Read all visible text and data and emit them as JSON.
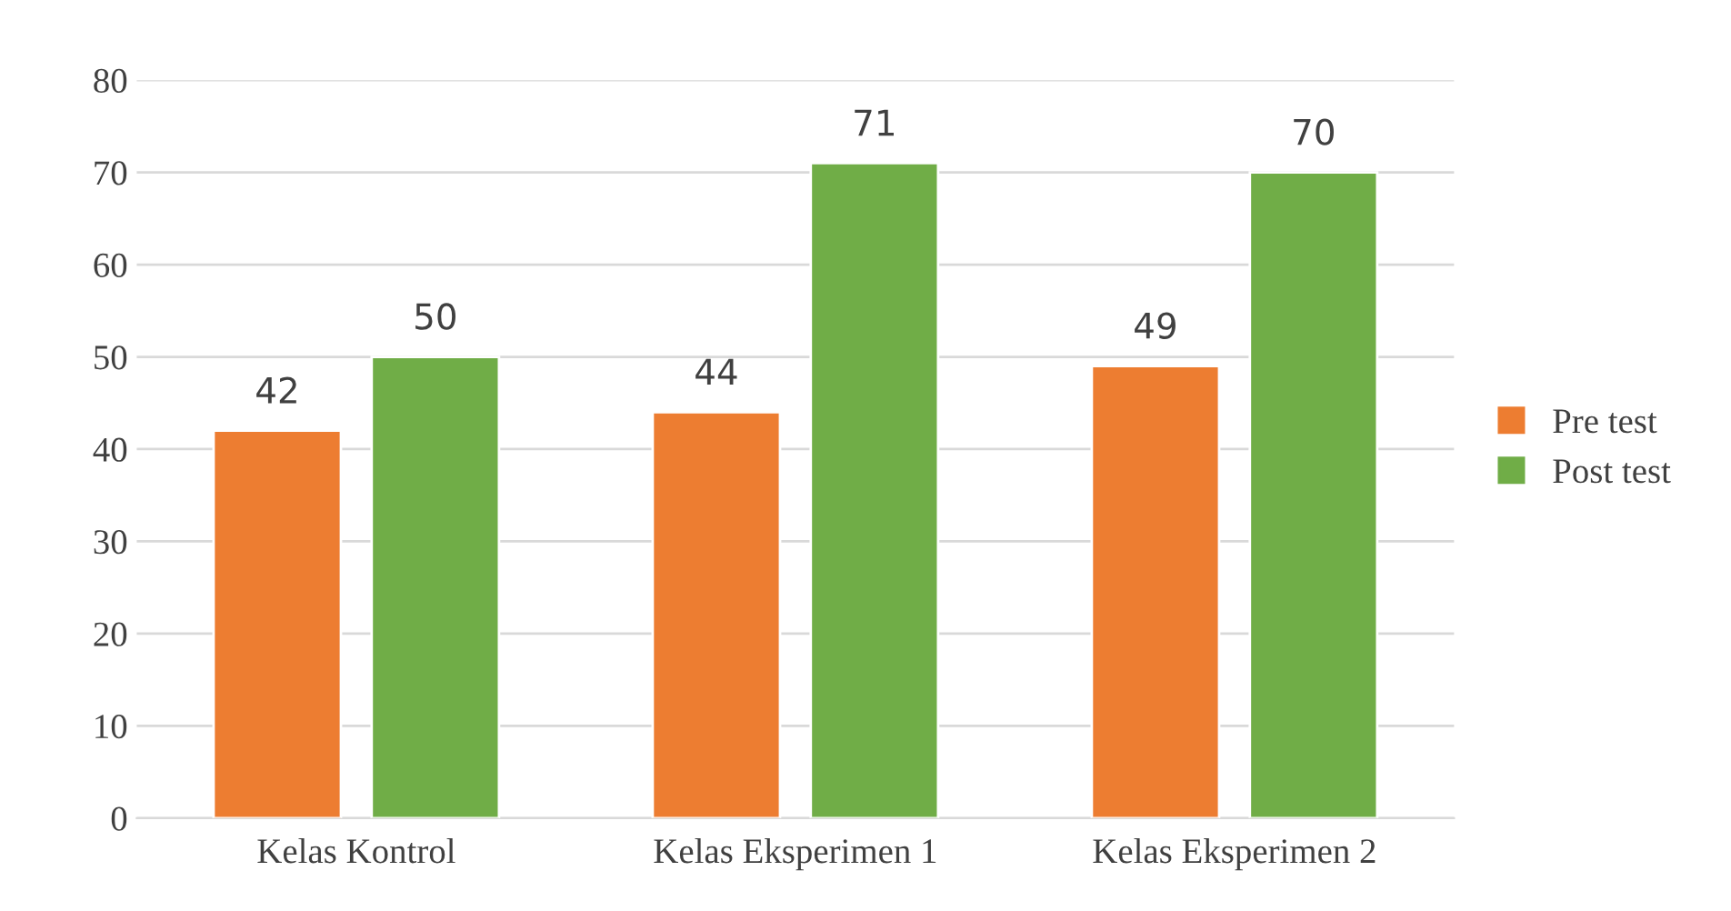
{
  "chart_data": {
    "type": "bar",
    "categories": [
      "Kelas Kontrol",
      "Kelas Eksperimen 1",
      "Kelas Eksperimen 2"
    ],
    "series": [
      {
        "name": "Pre test",
        "color": "#ed7d31",
        "values": [
          42,
          44,
          49
        ]
      },
      {
        "name": "Post test",
        "color": "#70ad47",
        "values": [
          50,
          71,
          70
        ]
      }
    ],
    "ylim": [
      0,
      80
    ],
    "yticks": [
      0,
      10,
      20,
      30,
      40,
      50,
      60,
      70,
      80
    ],
    "grid": "y",
    "legend": "right",
    "data_labels": true
  }
}
